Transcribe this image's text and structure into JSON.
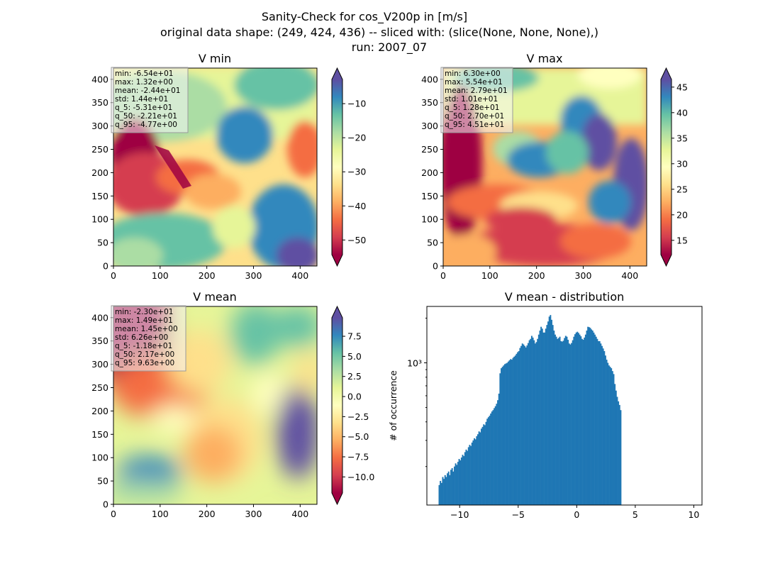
{
  "figure": {
    "title_lines": [
      "Sanity-Check for cos_V200p in [m/s]",
      "original data shape: (249, 424, 436) -- sliced with: (slice(None, None, None),)",
      "run: 2007_07"
    ]
  },
  "chart_data": [
    {
      "type": "heatmap",
      "title": "V min",
      "colormap": "Spectral",
      "xlim": [
        0,
        436
      ],
      "ylim": [
        0,
        424
      ],
      "xticks": [
        0,
        100,
        200,
        300,
        400
      ],
      "yticks": [
        0,
        50,
        100,
        150,
        200,
        250,
        300,
        350,
        400
      ],
      "colorbar": {
        "vmin": -54.3,
        "vmax": -2.9,
        "ticks": [
          -10,
          -20,
          -30,
          -40,
          -50
        ],
        "tick_labels": [
          "−10",
          "−20",
          "−30",
          "−40",
          "−50"
        ],
        "extend": "both"
      },
      "stats": [
        "min: -6.54e+01",
        "max: 1.32e+00",
        "mean: -2.44e+01",
        "std: 1.44e+01",
        "q_5: -5.31e+01",
        "q_50: -2.21e+01",
        "q_95: -4.77e+00"
      ]
    },
    {
      "type": "heatmap",
      "title": "V max",
      "colormap": "Spectral",
      "xlim": [
        0,
        436
      ],
      "ylim": [
        0,
        424
      ],
      "xticks": [
        0,
        100,
        200,
        300,
        400
      ],
      "yticks": [
        0,
        50,
        100,
        150,
        200,
        250,
        300,
        350,
        400
      ],
      "colorbar": {
        "vmin": 12.2,
        "vmax": 46.5,
        "ticks": [
          45,
          40,
          35,
          30,
          25,
          20,
          15
        ],
        "tick_labels": [
          "45",
          "40",
          "35",
          "30",
          "25",
          "20",
          "15"
        ],
        "extend": "both"
      },
      "stats": [
        "min: 6.30e+00",
        "max: 5.54e+01",
        "mean: 2.79e+01",
        "std: 1.01e+01",
        "q_5: 1.28e+01",
        "q_50: 2.70e+01",
        "q_95: 4.51e+01"
      ]
    },
    {
      "type": "heatmap",
      "title": "V mean",
      "colormap": "Spectral",
      "xlim": [
        0,
        436
      ],
      "ylim": [
        0,
        424
      ],
      "xticks": [
        0,
        100,
        200,
        300,
        400
      ],
      "yticks": [
        0,
        50,
        100,
        150,
        200,
        250,
        300,
        350,
        400
      ],
      "colorbar": {
        "vmin": -12.0,
        "vmax": 9.8,
        "ticks": [
          7.5,
          5.0,
          2.5,
          0.0,
          -2.5,
          -5.0,
          -7.5,
          -10.0
        ],
        "tick_labels": [
          "7.5",
          "5.0",
          "2.5",
          "0.0",
          "−2.5",
          "−5.0",
          "−7.5",
          "−10.0"
        ],
        "extend": "both"
      },
      "stats": [
        "min: -2.30e+01",
        "max: 1.49e+01",
        "mean: 1.45e+00",
        "std: 6.26e+00",
        "q_5: -1.18e+01",
        "q_50: 2.17e+00",
        "q_95: 9.63e+00"
      ]
    },
    {
      "type": "bar",
      "title": "V mean - distribution",
      "ylabel": "# of occurrence",
      "yscale": "log",
      "xlim": [
        -12.8,
        10.7
      ],
      "ylim": [
        110,
        2400
      ],
      "xticks": [
        -10,
        -5,
        0,
        5,
        10
      ],
      "xtick_labels": [
        "−10",
        "−5",
        "0",
        "5",
        "10"
      ],
      "ytick_labels": [
        {
          "value": 1000,
          "label": "10³"
        }
      ],
      "bar_color": "#1f77b4",
      "bin_start": -11.8,
      "bin_width": 0.1,
      "values": [
        150,
        160,
        155,
        170,
        165,
        175,
        170,
        180,
        185,
        175,
        190,
        195,
        185,
        200,
        210,
        205,
        215,
        225,
        220,
        230,
        240,
        235,
        250,
        260,
        255,
        270,
        280,
        275,
        290,
        300,
        310,
        305,
        320,
        330,
        345,
        340,
        360,
        370,
        385,
        380,
        400,
        420,
        430,
        440,
        455,
        470,
        480,
        495,
        510,
        530,
        560,
        620,
        850,
        920,
        940,
        960,
        980,
        990,
        1000,
        1020,
        1040,
        1060,
        1050,
        1080,
        1100,
        1120,
        1150,
        1180,
        1200,
        1260,
        1300,
        1350,
        1330,
        1300,
        1270,
        1310,
        1360,
        1420,
        1450,
        1520,
        1480,
        1420,
        1350,
        1380,
        1450,
        1550,
        1650,
        1750,
        1700,
        1600,
        1600,
        1700,
        1800,
        1900,
        2050,
        2100,
        1950,
        1800,
        1650,
        1550,
        1500,
        1450,
        1470,
        1500,
        1400,
        1390,
        1410,
        1470,
        1520,
        1500,
        1430,
        1350,
        1330,
        1360,
        1420,
        1500,
        1560,
        1600,
        1620,
        1590,
        1550,
        1510,
        1450,
        1430,
        1480,
        1550,
        1650,
        1750,
        1740,
        1720,
        1680,
        1650,
        1600,
        1550,
        1500,
        1450,
        1400,
        1400,
        1350,
        1300,
        1250,
        1200,
        1120,
        1050,
        1000,
        960,
        940,
        920,
        880,
        840,
        720,
        650,
        590,
        550,
        520,
        480
      ]
    }
  ]
}
